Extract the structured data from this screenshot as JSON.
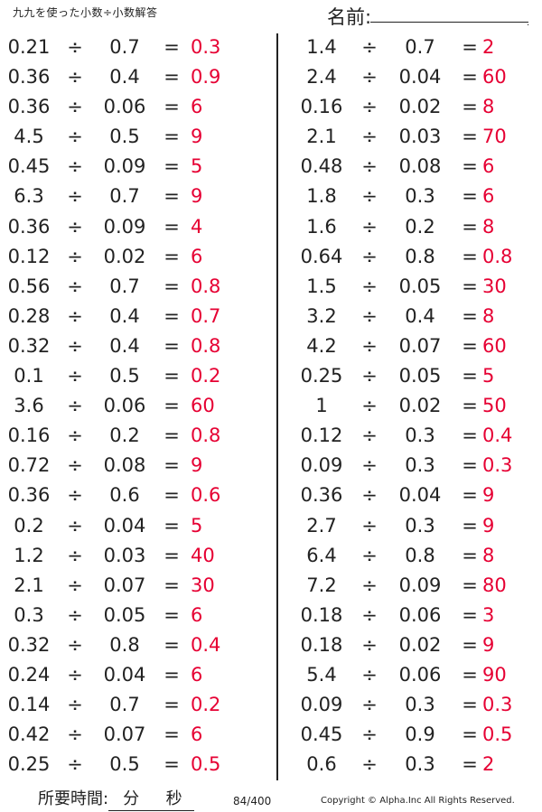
{
  "header": {
    "title": "九九を使った小数÷小数解答",
    "name_label": "名前:"
  },
  "left_column": [
    {
      "a": "0.21",
      "op": "÷",
      "b": "0.7",
      "eq": "=",
      "ans": "0.3"
    },
    {
      "a": "0.36",
      "op": "÷",
      "b": "0.4",
      "eq": "=",
      "ans": "0.9"
    },
    {
      "a": "0.36",
      "op": "÷",
      "b": "0.06",
      "eq": "=",
      "ans": "6"
    },
    {
      "a": "4.5",
      "op": "÷",
      "b": "0.5",
      "eq": "=",
      "ans": "9"
    },
    {
      "a": "0.45",
      "op": "÷",
      "b": "0.09",
      "eq": "=",
      "ans": "5"
    },
    {
      "a": "6.3",
      "op": "÷",
      "b": "0.7",
      "eq": "=",
      "ans": "9"
    },
    {
      "a": "0.36",
      "op": "÷",
      "b": "0.09",
      "eq": "=",
      "ans": "4"
    },
    {
      "a": "0.12",
      "op": "÷",
      "b": "0.02",
      "eq": "=",
      "ans": "6"
    },
    {
      "a": "0.56",
      "op": "÷",
      "b": "0.7",
      "eq": "=",
      "ans": "0.8"
    },
    {
      "a": "0.28",
      "op": "÷",
      "b": "0.4",
      "eq": "=",
      "ans": "0.7"
    },
    {
      "a": "0.32",
      "op": "÷",
      "b": "0.4",
      "eq": "=",
      "ans": "0.8"
    },
    {
      "a": "0.1",
      "op": "÷",
      "b": "0.5",
      "eq": "=",
      "ans": "0.2"
    },
    {
      "a": "3.6",
      "op": "÷",
      "b": "0.06",
      "eq": "=",
      "ans": "60"
    },
    {
      "a": "0.16",
      "op": "÷",
      "b": "0.2",
      "eq": "=",
      "ans": "0.8"
    },
    {
      "a": "0.72",
      "op": "÷",
      "b": "0.08",
      "eq": "=",
      "ans": "9"
    },
    {
      "a": "0.36",
      "op": "÷",
      "b": "0.6",
      "eq": "=",
      "ans": "0.6"
    },
    {
      "a": "0.2",
      "op": "÷",
      "b": "0.04",
      "eq": "=",
      "ans": "5"
    },
    {
      "a": "1.2",
      "op": "÷",
      "b": "0.03",
      "eq": "=",
      "ans": "40"
    },
    {
      "a": "2.1",
      "op": "÷",
      "b": "0.07",
      "eq": "=",
      "ans": "30"
    },
    {
      "a": "0.3",
      "op": "÷",
      "b": "0.05",
      "eq": "=",
      "ans": "6"
    },
    {
      "a": "0.32",
      "op": "÷",
      "b": "0.8",
      "eq": "=",
      "ans": "0.4"
    },
    {
      "a": "0.24",
      "op": "÷",
      "b": "0.04",
      "eq": "=",
      "ans": "6"
    },
    {
      "a": "0.14",
      "op": "÷",
      "b": "0.7",
      "eq": "=",
      "ans": "0.2"
    },
    {
      "a": "0.42",
      "op": "÷",
      "b": "0.07",
      "eq": "=",
      "ans": "6"
    },
    {
      "a": "0.25",
      "op": "÷",
      "b": "0.5",
      "eq": "=",
      "ans": "0.5"
    }
  ],
  "right_column": [
    {
      "a": "1.4",
      "op": "÷",
      "b": "0.7",
      "eq": "=",
      "ans": "2"
    },
    {
      "a": "2.4",
      "op": "÷",
      "b": "0.04",
      "eq": "=",
      "ans": "60"
    },
    {
      "a": "0.16",
      "op": "÷",
      "b": "0.02",
      "eq": "=",
      "ans": "8"
    },
    {
      "a": "2.1",
      "op": "÷",
      "b": "0.03",
      "eq": "=",
      "ans": "70"
    },
    {
      "a": "0.48",
      "op": "÷",
      "b": "0.08",
      "eq": "=",
      "ans": "6"
    },
    {
      "a": "1.8",
      "op": "÷",
      "b": "0.3",
      "eq": "=",
      "ans": "6"
    },
    {
      "a": "1.6",
      "op": "÷",
      "b": "0.2",
      "eq": "=",
      "ans": "8"
    },
    {
      "a": "0.64",
      "op": "÷",
      "b": "0.8",
      "eq": "=",
      "ans": "0.8"
    },
    {
      "a": "1.5",
      "op": "÷",
      "b": "0.05",
      "eq": "=",
      "ans": "30"
    },
    {
      "a": "3.2",
      "op": "÷",
      "b": "0.4",
      "eq": "=",
      "ans": "8"
    },
    {
      "a": "4.2",
      "op": "÷",
      "b": "0.07",
      "eq": "=",
      "ans": "60"
    },
    {
      "a": "0.25",
      "op": "÷",
      "b": "0.05",
      "eq": "=",
      "ans": "5"
    },
    {
      "a": "1",
      "op": "÷",
      "b": "0.02",
      "eq": "=",
      "ans": "50"
    },
    {
      "a": "0.12",
      "op": "÷",
      "b": "0.3",
      "eq": "=",
      "ans": "0.4"
    },
    {
      "a": "0.09",
      "op": "÷",
      "b": "0.3",
      "eq": "=",
      "ans": "0.3"
    },
    {
      "a": "0.36",
      "op": "÷",
      "b": "0.04",
      "eq": "=",
      "ans": "9"
    },
    {
      "a": "2.7",
      "op": "÷",
      "b": "0.3",
      "eq": "=",
      "ans": "9"
    },
    {
      "a": "6.4",
      "op": "÷",
      "b": "0.8",
      "eq": "=",
      "ans": "8"
    },
    {
      "a": "7.2",
      "op": "÷",
      "b": "0.09",
      "eq": "=",
      "ans": "80"
    },
    {
      "a": "0.18",
      "op": "÷",
      "b": "0.06",
      "eq": "=",
      "ans": "3"
    },
    {
      "a": "0.18",
      "op": "÷",
      "b": "0.02",
      "eq": "=",
      "ans": "9"
    },
    {
      "a": "5.4",
      "op": "÷",
      "b": "0.06",
      "eq": "=",
      "ans": "90"
    },
    {
      "a": "0.09",
      "op": "÷",
      "b": "0.3",
      "eq": "=",
      "ans": "0.3"
    },
    {
      "a": "0.45",
      "op": "÷",
      "b": "0.9",
      "eq": "=",
      "ans": "0.5"
    },
    {
      "a": "0.6",
      "op": "÷",
      "b": "0.3",
      "eq": "=",
      "ans": "2"
    }
  ],
  "footer": {
    "time_label": "所要時間:",
    "minutes_label": "分",
    "seconds_label": "秒",
    "page": "84/400",
    "copyright": "Copyright © Alpha.Inc All Rights Reserved."
  },
  "colors": {
    "answer": "#e60033",
    "text": "#222222"
  }
}
